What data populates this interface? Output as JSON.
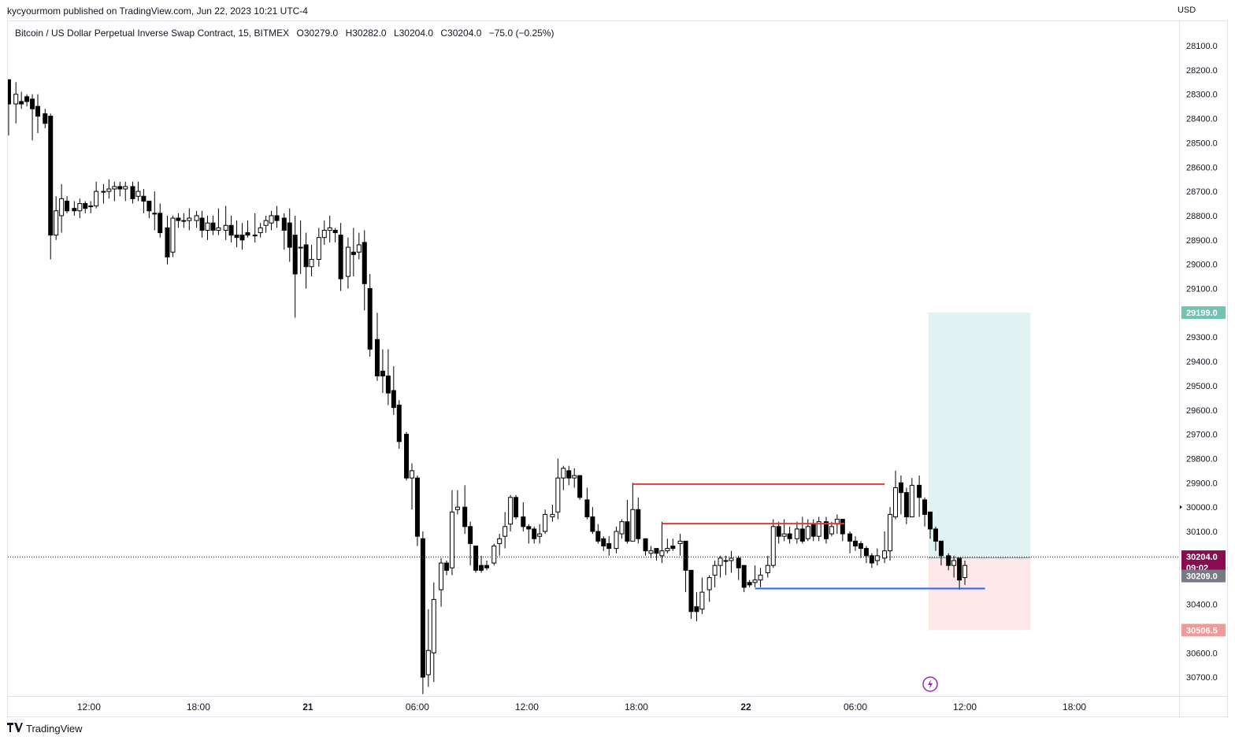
{
  "header": {
    "published_line": "kycyourmom published on TradingView.com, Jun 22, 2023 10:21 UTC-4"
  },
  "legend": {
    "symbol": "Bitcoin / US Dollar Perpetual Inverse Swap Contract, 15, BITMEX",
    "open": "O30279.0",
    "high": "H30282.0",
    "low": "L30204.0",
    "close": "C30204.0",
    "change": "−75.0 (−0.25%)"
  },
  "axis": {
    "currency": "USD"
  },
  "footer": {
    "brand": "TradingView"
  },
  "colors": {
    "up_candle": "#ffffff",
    "down_candle": "#000000",
    "resistance_line": "#e53935",
    "support_line": "#2962ff",
    "target_zone": "#e0f2f1",
    "stop_zone": "#fce8e8",
    "target_label": "#73c3b2",
    "stop_label": "#ef9a9a",
    "last_price_label": "#880e4f",
    "entry_label": "#787b86"
  },
  "chart_data": {
    "type": "candlestick",
    "symbol": "Bitcoin / US Dollar Perpetual Inverse Swap Contract",
    "interval": "15",
    "exchange": "BITMEX",
    "price_axis_inverted": true,
    "y_ticks": [
      "28100.0",
      "28200.0",
      "28300.0",
      "28400.0",
      "28500.0",
      "28600.0",
      "28700.0",
      "28800.0",
      "28900.0",
      "29000.0",
      "29100.0",
      "29300.0",
      "29400.0",
      "29500.0",
      "29600.0",
      "29700.0",
      "29800.0",
      "29900.0",
      "30000.0",
      "30100.0",
      "30400.0",
      "30600.0",
      "30700.0"
    ],
    "y_tick_values": [
      28100,
      28200,
      28300,
      28400,
      28500,
      28600,
      28700,
      28800,
      28900,
      29000,
      29100,
      29300,
      29400,
      29500,
      29600,
      29700,
      29800,
      29900,
      30000,
      30100,
      30400,
      30600,
      30700
    ],
    "x_ticks": [
      "12:00",
      "18:00",
      "21",
      "06:00",
      "12:00",
      "18:00",
      "22",
      "06:00",
      "12:00",
      "18:00"
    ],
    "x_tick_hours": [
      -36,
      -30,
      -24,
      -18,
      -12,
      -6,
      0,
      6,
      12,
      18
    ],
    "bold_x_ticks": [
      "21",
      "22"
    ],
    "price_labels": {
      "target": "29199.0",
      "last": "30204.0",
      "countdown": "09:02",
      "entry": "30209.0",
      "stop": "30506.5"
    },
    "price_label_values": {
      "target": 29199.0,
      "last": 30204.0,
      "entry": 30209.0,
      "stop": 30506.5
    },
    "horizontal_levels": [
      {
        "role": "resistance",
        "price": 29905,
        "from_hour": -6.2,
        "to_hour": 7.6
      },
      {
        "role": "resistance",
        "price": 30068,
        "from_hour": -4.6,
        "to_hour": 5.4
      },
      {
        "role": "support",
        "price": 30335,
        "from_hour": 0.5,
        "to_hour": 13.1
      }
    ],
    "position_tool": {
      "side": "short",
      "entry": 30209.0,
      "target": 29199.0,
      "stop": 30506.5,
      "from_hour": 10.0,
      "to_hour": 15.6
    },
    "current_price_line": 30204.0,
    "candles": [
      [
        -46.4,
        27800,
        27960,
        27920,
        27870
      ],
      [
        -46.1,
        27880,
        27960,
        27900,
        27930
      ],
      [
        -45.8,
        27910,
        27950,
        27900,
        27930
      ],
      [
        -45.5,
        27900,
        28040,
        28030,
        27960
      ],
      [
        -45.1,
        28030,
        28090,
        28080,
        28020
      ],
      [
        -44.8,
        28080,
        28130,
        28110,
        28050
      ],
      [
        -44.5,
        28060,
        28130,
        28090,
        28100
      ],
      [
        -44.2,
        28100,
        28140,
        28120,
        28120
      ],
      [
        -43.9,
        28120,
        28160,
        28150,
        28130
      ],
      [
        -43.5,
        28140,
        28180,
        28150,
        28170
      ],
      [
        -43.2,
        28160,
        28220,
        28200,
        28160
      ],
      [
        -42.9,
        28200,
        28250,
        28210,
        28220
      ],
      [
        -42.6,
        28200,
        28240,
        28200,
        28230
      ],
      [
        -42.3,
        28220,
        28250,
        28220,
        28240
      ],
      [
        -41.9,
        28230,
        28270,
        28250,
        28240
      ],
      [
        -41.6,
        28200,
        28260,
        28220,
        28250
      ],
      [
        -41.3,
        28230,
        28260,
        28250,
        28240
      ],
      [
        -41.0,
        28250,
        28300,
        28290,
        28240
      ],
      [
        -40.7,
        28200,
        28330,
        28240,
        28300
      ],
      [
        -40.4,
        28290,
        28470,
        28340,
        28240
      ],
      [
        -40.0,
        28250,
        28420,
        28300,
        28340
      ],
      [
        -39.7,
        28290,
        28360,
        28340,
        28330
      ],
      [
        -39.4,
        28300,
        28350,
        28330,
        28310
      ],
      [
        -39.1,
        28300,
        28490,
        28360,
        28320
      ],
      [
        -38.8,
        28300,
        28460,
        28390,
        28350
      ],
      [
        -38.4,
        28360,
        28440,
        28420,
        28380
      ],
      [
        -38.1,
        28380,
        28980,
        28880,
        28390
      ],
      [
        -37.8,
        28720,
        28900,
        28780,
        28880
      ],
      [
        -37.5,
        28670,
        28870,
        28730,
        28800
      ],
      [
        -37.2,
        28720,
        28790,
        28780,
        28740
      ],
      [
        -36.8,
        28740,
        28800,
        28780,
        28770
      ],
      [
        -36.5,
        28730,
        28810,
        28750,
        28780
      ],
      [
        -36.2,
        28740,
        28790,
        28770,
        28750
      ],
      [
        -35.9,
        28740,
        28790,
        28760,
        28760
      ],
      [
        -35.6,
        28660,
        28770,
        28700,
        28760
      ],
      [
        -35.2,
        28670,
        28750,
        28700,
        28700
      ],
      [
        -34.9,
        28650,
        28730,
        28690,
        28700
      ],
      [
        -34.6,
        28660,
        28740,
        28680,
        28690
      ],
      [
        -34.3,
        28660,
        28720,
        28690,
        28680
      ],
      [
        -34.0,
        28660,
        28740,
        28680,
        28690
      ],
      [
        -33.6,
        28660,
        28750,
        28730,
        28680
      ],
      [
        -33.3,
        28660,
        28740,
        28700,
        28720
      ],
      [
        -33.0,
        28690,
        28790,
        28740,
        28720
      ],
      [
        -32.7,
        28740,
        28810,
        28780,
        28740
      ],
      [
        -32.4,
        28700,
        28860,
        28790,
        28790
      ],
      [
        -32.1,
        28750,
        28890,
        28870,
        28790
      ],
      [
        -31.7,
        28800,
        29000,
        28970,
        28850
      ],
      [
        -31.4,
        28800,
        28970,
        28810,
        28950
      ],
      [
        -31.1,
        28790,
        28850,
        28820,
        28810
      ],
      [
        -30.8,
        28790,
        28850,
        28820,
        28820
      ],
      [
        -30.5,
        28770,
        28860,
        28810,
        28820
      ],
      [
        -30.1,
        28780,
        28850,
        28800,
        28820
      ],
      [
        -29.8,
        28780,
        28890,
        28860,
        28810
      ],
      [
        -29.5,
        28800,
        28900,
        28830,
        28860
      ],
      [
        -29.2,
        28800,
        28880,
        28860,
        28830
      ],
      [
        -28.9,
        28770,
        28880,
        28850,
        28860
      ],
      [
        -28.5,
        28760,
        28900,
        28840,
        28860
      ],
      [
        -28.2,
        28800,
        28910,
        28880,
        28840
      ],
      [
        -27.9,
        28820,
        28930,
        28890,
        28880
      ],
      [
        -27.6,
        28830,
        28940,
        28900,
        28880
      ],
      [
        -27.3,
        28820,
        28890,
        28880,
        28870
      ],
      [
        -26.9,
        28790,
        28910,
        28880,
        28880
      ],
      [
        -26.6,
        28830,
        28890,
        28850,
        28870
      ],
      [
        -26.3,
        28800,
        28870,
        28820,
        28840
      ],
      [
        -26.0,
        28780,
        28860,
        28800,
        28830
      ],
      [
        -25.7,
        28760,
        28850,
        28820,
        28800
      ],
      [
        -25.3,
        28790,
        28940,
        28860,
        28810
      ],
      [
        -25.0,
        28770,
        28990,
        28930,
        28830
      ],
      [
        -24.7,
        28800,
        29220,
        29040,
        28880
      ],
      [
        -24.4,
        28820,
        29040,
        28930,
        28930
      ],
      [
        -24.1,
        28870,
        29100,
        29010,
        28920
      ],
      [
        -23.8,
        28920,
        29050,
        28980,
        29010
      ],
      [
        -23.4,
        28850,
        29010,
        28890,
        28980
      ],
      [
        -23.1,
        28820,
        28920,
        28860,
        28890
      ],
      [
        -22.8,
        28800,
        28910,
        28850,
        28860
      ],
      [
        -22.5,
        28850,
        28910,
        28870,
        28860
      ],
      [
        -22.2,
        28830,
        29110,
        29060,
        28880
      ],
      [
        -21.8,
        28890,
        29100,
        28930,
        29050
      ],
      [
        -21.5,
        28850,
        29050,
        28960,
        28950
      ],
      [
        -21.2,
        28870,
        28980,
        28920,
        28950
      ],
      [
        -20.9,
        28860,
        29190,
        29080,
        28910
      ],
      [
        -20.6,
        29040,
        29380,
        29350,
        29100
      ],
      [
        -20.2,
        29200,
        29480,
        29460,
        29310
      ],
      [
        -19.9,
        29350,
        29530,
        29460,
        29440
      ],
      [
        -19.6,
        29350,
        29580,
        29530,
        29460
      ],
      [
        -19.3,
        29420,
        29620,
        29590,
        29520
      ],
      [
        -19.0,
        29560,
        29760,
        29730,
        29580
      ],
      [
        -18.6,
        29690,
        29890,
        29880,
        29700
      ],
      [
        -18.3,
        29820,
        30010,
        29850,
        29880
      ],
      [
        -18.0,
        29870,
        30160,
        30120,
        29880
      ],
      [
        -17.7,
        30100,
        30770,
        30700,
        30130
      ],
      [
        -17.4,
        30420,
        30740,
        30590,
        30690
      ],
      [
        -17.1,
        30310,
        30720,
        30380,
        30600
      ],
      [
        -16.7,
        30210,
        30410,
        30230,
        30340
      ],
      [
        -16.4,
        30220,
        30280,
        30260,
        30230
      ],
      [
        -16.1,
        29930,
        30280,
        30020,
        30250
      ],
      [
        -15.8,
        29930,
        30030,
        30000,
        30010
      ],
      [
        -15.4,
        29910,
        30110,
        30080,
        30000
      ],
      [
        -15.1,
        30060,
        30240,
        30150,
        30080
      ],
      [
        -14.8,
        30160,
        30270,
        30260,
        30160
      ],
      [
        -14.5,
        30200,
        30270,
        30260,
        30240
      ],
      [
        -14.2,
        30220,
        30260,
        30250,
        30240
      ],
      [
        -13.8,
        30150,
        30240,
        30160,
        30230
      ],
      [
        -13.5,
        30110,
        30200,
        30130,
        30150
      ],
      [
        -13.2,
        30020,
        30170,
        30080,
        30120
      ],
      [
        -12.9,
        29950,
        30100,
        29960,
        30070
      ],
      [
        -12.6,
        29950,
        30050,
        30040,
        29960
      ],
      [
        -12.2,
        29980,
        30100,
        30080,
        30040
      ],
      [
        -11.9,
        30070,
        30150,
        30090,
        30080
      ],
      [
        -11.6,
        30080,
        30150,
        30130,
        30090
      ],
      [
        -11.3,
        30070,
        30150,
        30110,
        30120
      ],
      [
        -11.0,
        30010,
        30110,
        30030,
        30100
      ],
      [
        -10.6,
        29990,
        30060,
        30030,
        30040
      ],
      [
        -10.3,
        29800,
        30050,
        29880,
        30020
      ],
      [
        -10.0,
        29830,
        29930,
        29840,
        29880
      ],
      [
        -9.7,
        29830,
        29910,
        29880,
        29850
      ],
      [
        -9.4,
        29840,
        29920,
        29870,
        29880
      ],
      [
        -9.1,
        29870,
        29970,
        29960,
        29870
      ],
      [
        -8.7,
        29920,
        30050,
        30040,
        29970
      ],
      [
        -8.4,
        30000,
        30110,
        30100,
        30040
      ],
      [
        -8.1,
        30070,
        30150,
        30140,
        30100
      ],
      [
        -7.8,
        30120,
        30180,
        30160,
        30130
      ],
      [
        -7.5,
        30120,
        30200,
        30170,
        30150
      ],
      [
        -7.1,
        30080,
        30190,
        30100,
        30170
      ],
      [
        -6.8,
        30050,
        30130,
        30060,
        30110
      ],
      [
        -6.5,
        29970,
        30150,
        30140,
        30060
      ],
      [
        -6.2,
        29900,
        30060,
        30010,
        30140
      ],
      [
        -5.9,
        29960,
        30150,
        30130,
        30010
      ],
      [
        -5.5,
        30150,
        30200,
        30180,
        30130
      ],
      [
        -5.2,
        30160,
        30210,
        30180,
        30190
      ],
      [
        -4.9,
        30170,
        30220,
        30190,
        30170
      ],
      [
        -4.6,
        30060,
        30230,
        30180,
        30200
      ],
      [
        -4.3,
        30130,
        30190,
        30170,
        30180
      ],
      [
        -4.0,
        30130,
        30180,
        30170,
        30160
      ],
      [
        -3.6,
        30110,
        30200,
        30140,
        30150
      ],
      [
        -3.3,
        30200,
        30350,
        30260,
        30140
      ],
      [
        -3.0,
        30300,
        30460,
        30430,
        30260
      ],
      [
        -2.7,
        30350,
        30470,
        30430,
        30410
      ],
      [
        -2.4,
        30290,
        30440,
        30350,
        30420
      ],
      [
        -2.0,
        30280,
        30390,
        30290,
        30340
      ],
      [
        -1.7,
        30220,
        30330,
        30240,
        30280
      ],
      [
        -1.4,
        30200,
        30290,
        30210,
        30240
      ],
      [
        -1.1,
        30200,
        30280,
        30220,
        30220
      ],
      [
        -0.8,
        30180,
        30270,
        30210,
        30220
      ],
      [
        -0.4,
        30200,
        30300,
        30250,
        30210
      ],
      [
        -0.1,
        30280,
        30350,
        30330,
        30240
      ],
      [
        0.2,
        30300,
        30330,
        30320,
        30310
      ],
      [
        0.5,
        30240,
        30330,
        30300,
        30310
      ],
      [
        0.8,
        30250,
        30330,
        30280,
        30300
      ],
      [
        1.2,
        30200,
        30290,
        30240,
        30270
      ],
      [
        1.5,
        30050,
        30250,
        30080,
        30240
      ],
      [
        1.8,
        30060,
        30150,
        30120,
        30080
      ],
      [
        2.1,
        30050,
        30140,
        30110,
        30120
      ],
      [
        2.4,
        30080,
        30150,
        30130,
        30110
      ],
      [
        2.8,
        30060,
        30150,
        30090,
        30130
      ],
      [
        3.1,
        30040,
        30150,
        30140,
        30090
      ],
      [
        3.4,
        30050,
        30140,
        30080,
        30130
      ],
      [
        3.7,
        30050,
        30140,
        30120,
        30070
      ],
      [
        4.0,
        30040,
        30140,
        30060,
        30120
      ],
      [
        4.4,
        30040,
        30150,
        30130,
        30060
      ],
      [
        4.7,
        30060,
        30120,
        30080,
        30110
      ],
      [
        5.0,
        30030,
        30110,
        30050,
        30070
      ],
      [
        5.3,
        30060,
        30140,
        30110,
        30050
      ],
      [
        5.7,
        30100,
        30190,
        30140,
        30110
      ],
      [
        6.0,
        30120,
        30180,
        30160,
        30140
      ],
      [
        6.3,
        30140,
        30210,
        30170,
        30150
      ],
      [
        6.6,
        30160,
        30230,
        30200,
        30170
      ],
      [
        6.9,
        30190,
        30250,
        30230,
        30200
      ],
      [
        7.2,
        30170,
        30240,
        30200,
        30220
      ],
      [
        7.6,
        30100,
        30230,
        30180,
        30210
      ],
      [
        7.9,
        30000,
        30220,
        30030,
        30180
      ],
      [
        8.2,
        29850,
        30050,
        29920,
        30040
      ],
      [
        8.5,
        29870,
        30030,
        29940,
        29900
      ],
      [
        8.8,
        29920,
        30070,
        30040,
        29940
      ],
      [
        9.1,
        29880,
        30020,
        29910,
        30040
      ],
      [
        9.5,
        29870,
        30040,
        29960,
        29910
      ],
      [
        9.8,
        29960,
        30080,
        30030,
        29970
      ],
      [
        10.1,
        30020,
        30130,
        30090,
        30020
      ],
      [
        10.4,
        30080,
        30180,
        30140,
        30090
      ],
      [
        10.7,
        30140,
        30240,
        30200,
        30140
      ],
      [
        11.1,
        30190,
        30260,
        30240,
        30200
      ],
      [
        11.4,
        30200,
        30290,
        30220,
        30240
      ],
      [
        11.7,
        30220,
        30340,
        30300,
        30210
      ],
      [
        12.0,
        30220,
        30320,
        30240,
        30290
      ]
    ]
  }
}
